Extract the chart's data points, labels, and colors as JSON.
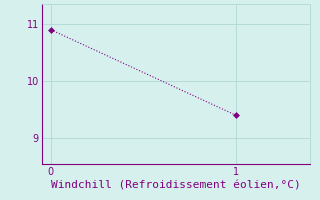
{
  "x": [
    0,
    1
  ],
  "y": [
    10.9,
    9.4
  ],
  "line_color": "#800080",
  "marker": "D",
  "marker_size": 3,
  "background_color": "#d6f0ee",
  "grid_color": "#b0d8d4",
  "axis_color": "#800080",
  "tick_color": "#800080",
  "xlabel": "Windchill (Refroidissement éolien,°C)",
  "xlabel_fontsize": 8,
  "xlabel_color": "#800080",
  "ytick_values": [
    9,
    10,
    11
  ],
  "xtick_values": [
    0,
    1
  ],
  "xlim": [
    -0.05,
    1.4
  ],
  "ylim": [
    8.55,
    11.35
  ]
}
